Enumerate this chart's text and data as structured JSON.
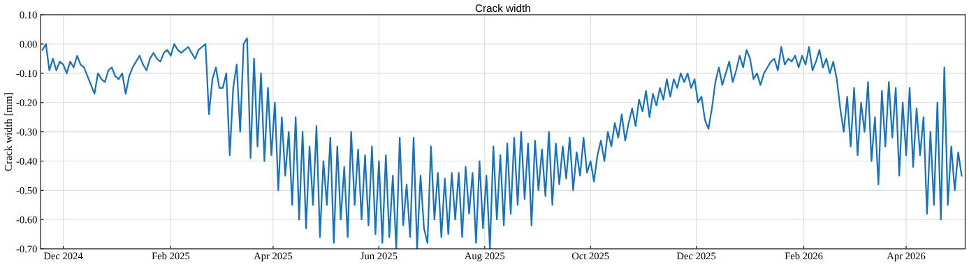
{
  "chart_data": {
    "type": "line",
    "title": "Crack width",
    "ylabel": "Crack width [mm]",
    "x": [
      "2024-11-19",
      "2024-11-21",
      "2024-11-23",
      "2024-11-25",
      "2024-11-27",
      "2024-11-29",
      "2024-12-01",
      "2024-12-03",
      "2024-12-05",
      "2024-12-07",
      "2024-12-09",
      "2024-12-11",
      "2024-12-13",
      "2024-12-15",
      "2024-12-17",
      "2024-12-19",
      "2024-12-21",
      "2024-12-23",
      "2024-12-25",
      "2024-12-27",
      "2024-12-29",
      "2024-12-31",
      "2025-01-02",
      "2025-01-04",
      "2025-01-06",
      "2025-01-08",
      "2025-01-10",
      "2025-01-12",
      "2025-01-14",
      "2025-01-16",
      "2025-01-18",
      "2025-01-20",
      "2025-01-22",
      "2025-01-24",
      "2025-01-26",
      "2025-01-28",
      "2025-01-30",
      "2025-02-01",
      "2025-02-03",
      "2025-02-05",
      "2025-02-07",
      "2025-02-09",
      "2025-02-11",
      "2025-02-13",
      "2025-02-15",
      "2025-02-17",
      "2025-02-19",
      "2025-02-21",
      "2025-02-23",
      "2025-02-25",
      "2025-02-27",
      "2025-03-01",
      "2025-03-03",
      "2025-03-05",
      "2025-03-07",
      "2025-03-09",
      "2025-03-11",
      "2025-03-13",
      "2025-03-15",
      "2025-03-17",
      "2025-03-19",
      "2025-03-21",
      "2025-03-23",
      "2025-03-25",
      "2025-03-27",
      "2025-03-29",
      "2025-03-31",
      "2025-04-02",
      "2025-04-04",
      "2025-04-06",
      "2025-04-08",
      "2025-04-10",
      "2025-04-12",
      "2025-04-14",
      "2025-04-16",
      "2025-04-18",
      "2025-04-20",
      "2025-04-22",
      "2025-04-24",
      "2025-04-26",
      "2025-04-28",
      "2025-04-30",
      "2025-05-02",
      "2025-05-04",
      "2025-05-06",
      "2025-05-08",
      "2025-05-10",
      "2025-05-12",
      "2025-05-14",
      "2025-05-16",
      "2025-05-18",
      "2025-05-20",
      "2025-05-22",
      "2025-05-24",
      "2025-05-26",
      "2025-05-28",
      "2025-05-30",
      "2025-06-01",
      "2025-06-03",
      "2025-06-05",
      "2025-06-07",
      "2025-06-09",
      "2025-06-11",
      "2025-06-13",
      "2025-06-15",
      "2025-06-17",
      "2025-06-19",
      "2025-06-21",
      "2025-06-23",
      "2025-06-25",
      "2025-06-27",
      "2025-06-29",
      "2025-07-01",
      "2025-07-03",
      "2025-07-05",
      "2025-07-07",
      "2025-07-09",
      "2025-07-11",
      "2025-07-13",
      "2025-07-15",
      "2025-07-17",
      "2025-07-19",
      "2025-07-21",
      "2025-07-23",
      "2025-07-25",
      "2025-07-27",
      "2025-07-29",
      "2025-07-31",
      "2025-08-02",
      "2025-08-04",
      "2025-08-06",
      "2025-08-08",
      "2025-08-10",
      "2025-08-12",
      "2025-08-14",
      "2025-08-16",
      "2025-08-18",
      "2025-08-20",
      "2025-08-22",
      "2025-08-24",
      "2025-08-26",
      "2025-08-28",
      "2025-08-30",
      "2025-09-01",
      "2025-09-03",
      "2025-09-05",
      "2025-09-07",
      "2025-09-09",
      "2025-09-11",
      "2025-09-13",
      "2025-09-15",
      "2025-09-17",
      "2025-09-19",
      "2025-09-21",
      "2025-09-23",
      "2025-09-25",
      "2025-09-27",
      "2025-09-29",
      "2025-10-01",
      "2025-10-03",
      "2025-10-05",
      "2025-10-07",
      "2025-10-09",
      "2025-10-11",
      "2025-10-13",
      "2025-10-15",
      "2025-10-17",
      "2025-10-19",
      "2025-10-21",
      "2025-10-23",
      "2025-10-25",
      "2025-10-27",
      "2025-10-29",
      "2025-10-31",
      "2025-11-02",
      "2025-11-04",
      "2025-11-06",
      "2025-11-08",
      "2025-11-10",
      "2025-11-12",
      "2025-11-14",
      "2025-11-16",
      "2025-11-18",
      "2025-11-20",
      "2025-11-22",
      "2025-11-24",
      "2025-11-26",
      "2025-11-28",
      "2025-11-30",
      "2025-12-02",
      "2025-12-04",
      "2025-12-06",
      "2025-12-08",
      "2025-12-10",
      "2025-12-12",
      "2025-12-14",
      "2025-12-16",
      "2025-12-18",
      "2025-12-20",
      "2025-12-22",
      "2025-12-24",
      "2025-12-26",
      "2025-12-28",
      "2025-12-30",
      "2026-01-01",
      "2026-01-03",
      "2026-01-05",
      "2026-01-07",
      "2026-01-09",
      "2026-01-11",
      "2026-01-13",
      "2026-01-15",
      "2026-01-17",
      "2026-01-19",
      "2026-01-21",
      "2026-01-23",
      "2026-01-25",
      "2026-01-27",
      "2026-01-29",
      "2026-01-31",
      "2026-02-02",
      "2026-02-04",
      "2026-02-06",
      "2026-02-08",
      "2026-02-10",
      "2026-02-12",
      "2026-02-14",
      "2026-02-16",
      "2026-02-18",
      "2026-02-20",
      "2026-02-22",
      "2026-02-24",
      "2026-02-26",
      "2026-02-28",
      "2026-03-02",
      "2026-03-04",
      "2026-03-06",
      "2026-03-08",
      "2026-03-10",
      "2026-03-12",
      "2026-03-14",
      "2026-03-16",
      "2026-03-18",
      "2026-03-20",
      "2026-03-22",
      "2026-03-24",
      "2026-03-26",
      "2026-03-28",
      "2026-03-30",
      "2026-04-01",
      "2026-04-03",
      "2026-04-05",
      "2026-04-07",
      "2026-04-09",
      "2026-04-11",
      "2026-04-13",
      "2026-04-15",
      "2026-04-17",
      "2026-04-19",
      "2026-04-21",
      "2026-04-23",
      "2026-04-25",
      "2026-04-27",
      "2026-04-29",
      "2026-05-01",
      "2026-05-03"
    ],
    "series": [
      {
        "color": "#1572c0",
        "values": [
          -0.02,
          0.0,
          -0.09,
          -0.05,
          -0.09,
          -0.06,
          -0.07,
          -0.1,
          -0.06,
          -0.08,
          -0.04,
          -0.07,
          -0.08,
          -0.11,
          -0.14,
          -0.17,
          -0.1,
          -0.12,
          -0.13,
          -0.09,
          -0.08,
          -0.11,
          -0.12,
          -0.1,
          -0.17,
          -0.11,
          -0.08,
          -0.06,
          -0.04,
          -0.07,
          -0.09,
          -0.05,
          -0.03,
          -0.05,
          -0.06,
          -0.03,
          -0.02,
          -0.04,
          0.0,
          -0.02,
          -0.03,
          -0.02,
          -0.01,
          -0.03,
          -0.05,
          -0.02,
          -0.01,
          0.0,
          -0.24,
          -0.12,
          -0.08,
          -0.15,
          -0.15,
          -0.1,
          -0.38,
          -0.15,
          -0.07,
          -0.3,
          0.0,
          0.02,
          -0.39,
          -0.05,
          -0.35,
          -0.1,
          -0.4,
          -0.15,
          -0.38,
          -0.2,
          -0.5,
          -0.25,
          -0.45,
          -0.3,
          -0.55,
          -0.25,
          -0.6,
          -0.3,
          -0.63,
          -0.35,
          -0.55,
          -0.28,
          -0.66,
          -0.4,
          -0.55,
          -0.32,
          -0.68,
          -0.35,
          -0.6,
          -0.42,
          -0.66,
          -0.3,
          -0.55,
          -0.36,
          -0.6,
          -0.38,
          -0.62,
          -0.35,
          -0.65,
          -0.4,
          -0.68,
          -0.38,
          -0.66,
          -0.45,
          -0.7,
          -0.32,
          -0.62,
          -0.48,
          -0.66,
          -0.32,
          -0.7,
          -0.45,
          -0.63,
          -0.68,
          -0.35,
          -0.6,
          -0.44,
          -0.66,
          -0.46,
          -0.65,
          -0.44,
          -0.6,
          -0.44,
          -0.66,
          -0.42,
          -0.58,
          -0.44,
          -0.68,
          -0.4,
          -0.63,
          -0.45,
          -0.7,
          -0.35,
          -0.6,
          -0.38,
          -0.62,
          -0.34,
          -0.58,
          -0.32,
          -0.55,
          -0.3,
          -0.53,
          -0.34,
          -0.62,
          -0.33,
          -0.5,
          -0.36,
          -0.52,
          -0.3,
          -0.55,
          -0.34,
          -0.48,
          -0.35,
          -0.46,
          -0.32,
          -0.5,
          -0.37,
          -0.45,
          -0.32,
          -0.44,
          -0.4,
          -0.47,
          -0.38,
          -0.33,
          -0.4,
          -0.3,
          -0.35,
          -0.27,
          -0.32,
          -0.24,
          -0.33,
          -0.27,
          -0.22,
          -0.28,
          -0.19,
          -0.23,
          -0.16,
          -0.25,
          -0.17,
          -0.21,
          -0.15,
          -0.19,
          -0.12,
          -0.18,
          -0.12,
          -0.15,
          -0.1,
          -0.13,
          -0.1,
          -0.15,
          -0.12,
          -0.2,
          -0.18,
          -0.26,
          -0.29,
          -0.22,
          -0.13,
          -0.08,
          -0.14,
          -0.1,
          -0.06,
          -0.13,
          -0.09,
          -0.04,
          -0.08,
          -0.02,
          -0.05,
          -0.12,
          -0.1,
          -0.14,
          -0.1,
          -0.08,
          -0.06,
          -0.05,
          -0.09,
          -0.01,
          -0.07,
          -0.05,
          -0.06,
          -0.04,
          -0.08,
          -0.04,
          -0.07,
          -0.01,
          -0.09,
          -0.06,
          -0.02,
          -0.08,
          -0.05,
          -0.1,
          -0.06,
          -0.12,
          -0.22,
          -0.3,
          -0.18,
          -0.35,
          -0.15,
          -0.38,
          -0.2,
          -0.3,
          -0.13,
          -0.4,
          -0.25,
          -0.48,
          -0.16,
          -0.35,
          -0.13,
          -0.32,
          -0.15,
          -0.45,
          -0.2,
          -0.38,
          -0.15,
          -0.42,
          -0.22,
          -0.38,
          -0.25,
          -0.58,
          -0.3,
          -0.55,
          -0.2,
          -0.6,
          -0.08,
          -0.55,
          -0.35,
          -0.5,
          -0.37,
          -0.45
        ]
      }
    ],
    "xlim": [
      "2024-11-18",
      "2026-05-05"
    ],
    "xticks": [
      {
        "value": "2024-12-01",
        "label": "Dec 2024"
      },
      {
        "value": "2025-02-01",
        "label": "Feb 2025"
      },
      {
        "value": "2025-04-01",
        "label": "Apr 2025"
      },
      {
        "value": "2025-06-01",
        "label": "Jun 2025"
      },
      {
        "value": "2025-08-01",
        "label": "Aug 2025"
      },
      {
        "value": "2025-10-01",
        "label": "Oct 2025"
      },
      {
        "value": "2025-12-01",
        "label": "Dec 2025"
      },
      {
        "value": "2026-02-01",
        "label": "Feb 2026"
      },
      {
        "value": "2026-04-01",
        "label": "Apr 2026"
      }
    ],
    "ylim": [
      -0.7,
      0.1
    ],
    "yticks": [
      {
        "value": 0.1,
        "label": "0.10"
      },
      {
        "value": 0.0,
        "label": "0.00"
      },
      {
        "value": -0.1,
        "label": "-0.10"
      },
      {
        "value": -0.2,
        "label": "-0.20"
      },
      {
        "value": -0.3,
        "label": "-0.30"
      },
      {
        "value": -0.4,
        "label": "-0.40"
      },
      {
        "value": -0.5,
        "label": "-0.50"
      },
      {
        "value": -0.6,
        "label": "-0.60"
      },
      {
        "value": -0.7,
        "label": "-0.70"
      }
    ],
    "grid": true
  }
}
